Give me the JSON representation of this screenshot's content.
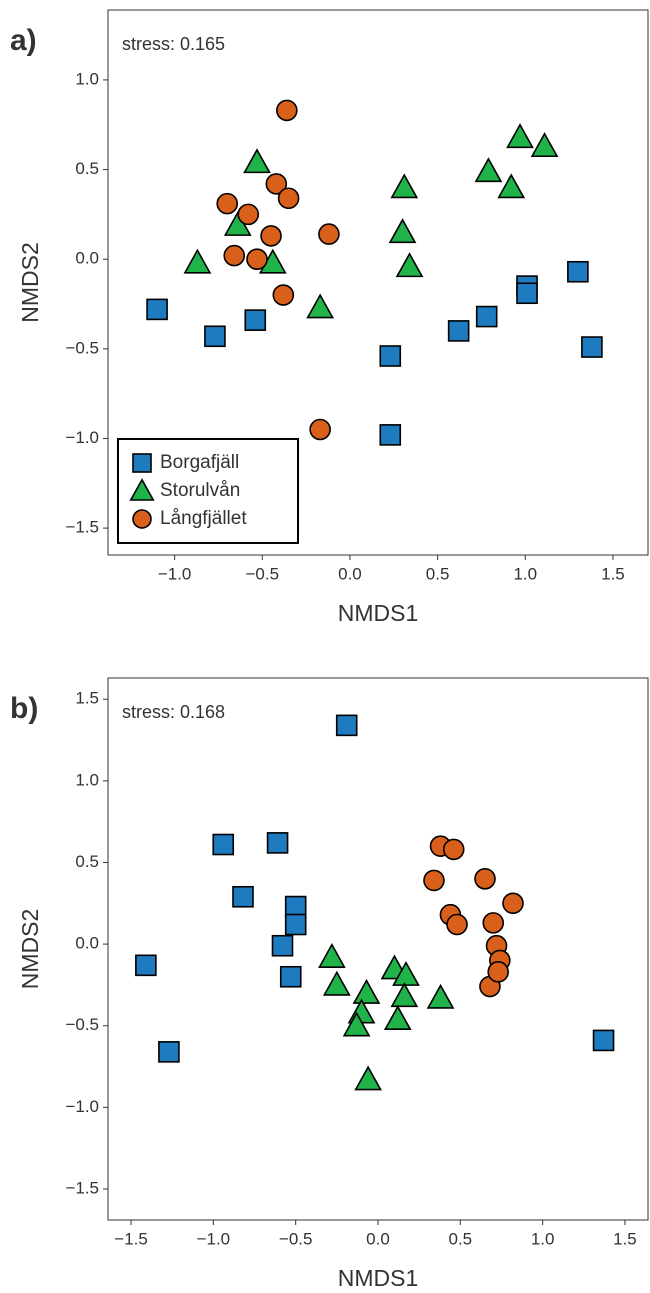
{
  "chart_data": [
    {
      "type": "scatter",
      "panel_label": "a)",
      "annotation": "stress: 0.165",
      "x_label": "NMDS1",
      "y_label": "NMDS2",
      "xlim": [
        -1.38,
        1.7
      ],
      "ylim": [
        -1.65,
        1.39
      ],
      "xticks": [
        {
          "value": -1,
          "label": "−1.0"
        },
        {
          "value": -0.5,
          "label": "−0.5"
        },
        {
          "value": 0,
          "label": "0.0"
        },
        0.5,
        {
          "value": 1,
          "label": "1.0"
        },
        1.5
      ],
      "yticks": [
        {
          "value": -1.5,
          "label": "−1.5"
        },
        {
          "value": -1,
          "label": "−1.0"
        },
        {
          "value": -0.5,
          "label": "−0.5"
        },
        {
          "value": 0,
          "label": "0.0"
        },
        0.5,
        {
          "value": 1,
          "label": "1.0"
        }
      ],
      "grid": false,
      "legend": "lower left",
      "series": [
        {
          "name": "Borgafjäll",
          "color": "#1f7bbf",
          "marker": "square",
          "x": [
            -1.1,
            -0.77,
            -0.54,
            0.23,
            0.23,
            0.62,
            0.78,
            1.01,
            1.01,
            1.3,
            1.38
          ],
          "values": [
            -0.28,
            -0.43,
            -0.34,
            -0.54,
            -0.98,
            -0.4,
            -0.32,
            -0.15,
            -0.19,
            -0.07,
            -0.49
          ]
        },
        {
          "name": "Storulvån",
          "color": "#1fb34a",
          "marker": "triangle",
          "x": [
            -0.53,
            -0.64,
            -0.87,
            -0.44,
            -0.17,
            0.31,
            0.3,
            0.34,
            0.79,
            0.97,
            0.92,
            1.11
          ],
          "values": [
            0.54,
            0.19,
            -0.02,
            -0.02,
            -0.27,
            0.4,
            0.15,
            -0.04,
            0.49,
            0.68,
            0.4,
            0.63
          ]
        },
        {
          "name": "Långfjället",
          "color": "#d9601a",
          "marker": "circle",
          "x": [
            -0.36,
            -0.7,
            -0.58,
            -0.42,
            -0.35,
            -0.45,
            -0.53,
            -0.66,
            -0.38,
            -0.12,
            -0.17
          ],
          "values": [
            0.83,
            0.31,
            0.25,
            0.42,
            0.34,
            0.13,
            0.0,
            0.02,
            -0.2,
            0.14,
            -0.95
          ]
        }
      ]
    },
    {
      "type": "scatter",
      "panel_label": "b)",
      "annotation": "stress: 0.168",
      "x_label": "NMDS1",
      "y_label": "NMDS2",
      "xlim": [
        -1.64,
        1.64
      ],
      "ylim": [
        -1.69,
        1.63
      ],
      "xticks": [
        {
          "value": -1.5,
          "label": "−1.5"
        },
        {
          "value": -1,
          "label": "−1.0"
        },
        {
          "value": -0.5,
          "label": "−0.5"
        },
        {
          "value": 0,
          "label": "0.0"
        },
        0.5,
        {
          "value": 1,
          "label": "1.0"
        },
        1.5
      ],
      "yticks": [
        {
          "value": -1.5,
          "label": "−1.5"
        },
        {
          "value": -1,
          "label": "−1.0"
        },
        {
          "value": -0.5,
          "label": "−0.5"
        },
        {
          "value": 0,
          "label": "0.0"
        },
        0.5,
        {
          "value": 1,
          "label": "1.0"
        },
        1.5
      ],
      "grid": false,
      "series": [
        {
          "color": "#1f7bbf",
          "marker": "square",
          "x": [
            -0.19,
            -0.94,
            -0.61,
            -0.82,
            -0.5,
            -0.5,
            -0.58,
            -0.53,
            -1.41,
            -1.27,
            1.37
          ],
          "values": [
            1.34,
            0.61,
            0.62,
            0.29,
            0.23,
            0.12,
            -0.01,
            -0.2,
            -0.13,
            -0.66,
            -0.59
          ]
        },
        {
          "color": "#1fb34a",
          "marker": "triangle",
          "x": [
            -0.28,
            -0.25,
            -0.07,
            -0.1,
            -0.13,
            -0.06,
            0.1,
            0.17,
            0.16,
            0.12,
            0.38
          ],
          "values": [
            -0.08,
            -0.25,
            -0.3,
            -0.42,
            -0.5,
            -0.83,
            -0.15,
            -0.19,
            -0.32,
            -0.46,
            -0.33
          ]
        },
        {
          "color": "#d9601a",
          "marker": "circle",
          "x": [
            0.38,
            0.46,
            0.34,
            0.44,
            0.48,
            0.65,
            0.82,
            0.7,
            0.72,
            0.74,
            0.68,
            0.73
          ],
          "values": [
            0.6,
            0.58,
            0.39,
            0.18,
            0.12,
            0.4,
            0.25,
            0.13,
            -0.01,
            -0.1,
            -0.26,
            -0.17
          ]
        }
      ]
    }
  ]
}
